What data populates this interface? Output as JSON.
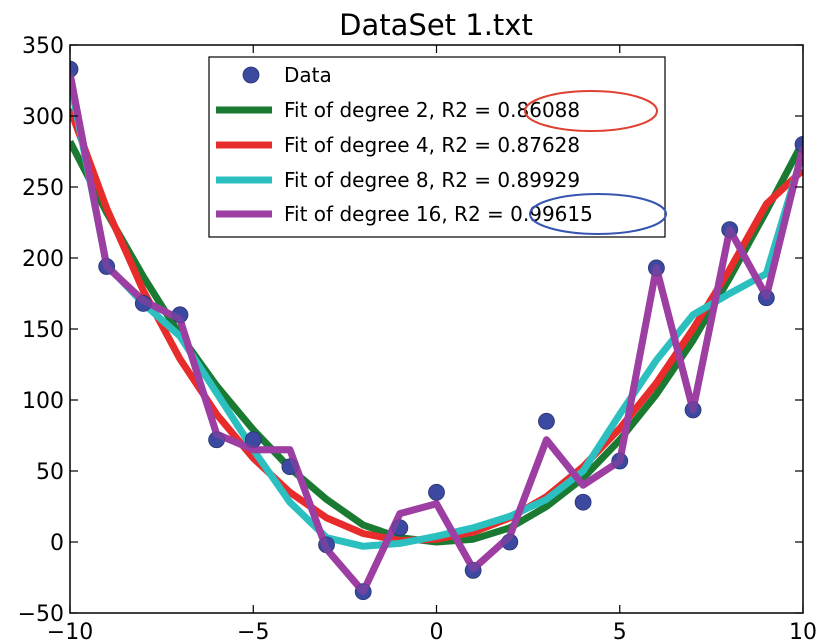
{
  "chart_data": {
    "type": "line",
    "title": "DataSet 1.txt",
    "xlabel": "",
    "ylabel": "",
    "xlim": [
      -10,
      10
    ],
    "ylim": [
      -50,
      350
    ],
    "xticks": [
      -10,
      -5,
      0,
      5,
      10
    ],
    "yticks": [
      -50,
      0,
      50,
      100,
      150,
      200,
      250,
      300,
      350
    ],
    "xtick_labels": [
      "−10",
      "−5",
      "0",
      "5",
      "10"
    ],
    "ytick_labels": [
      "−50",
      "0",
      "50",
      "100",
      "150",
      "200",
      "250",
      "300",
      "350"
    ],
    "grid": false,
    "legend_position": "top-center",
    "series": [
      {
        "name": "Data",
        "kind": "scatter",
        "color": "#3b4aa0",
        "x": [
          -10,
          -9,
          -8,
          -7,
          -6,
          -5,
          -4,
          -3,
          -2,
          -1,
          0,
          1,
          2,
          3,
          4,
          5,
          6,
          7,
          8,
          9,
          10
        ],
        "y": [
          333,
          194,
          168,
          160,
          72,
          72,
          53,
          -2,
          -35,
          10,
          35,
          -20,
          0,
          85,
          28,
          57,
          193,
          93,
          220,
          172,
          280
        ]
      },
      {
        "name": "Fit of degree 2, R2 = 0.86088",
        "kind": "line",
        "color": "#1a7a32",
        "x": [
          -10,
          -9,
          -8,
          -7,
          -6,
          -5,
          -4,
          -3,
          -2,
          -1,
          0,
          1,
          2,
          3,
          4,
          5,
          6,
          7,
          8,
          9,
          10
        ],
        "y": [
          282,
          232,
          187,
          146,
          110,
          79,
          52,
          30,
          12,
          3,
          0,
          2,
          10,
          25,
          45,
          72,
          104,
          142,
          186,
          233,
          282
        ]
      },
      {
        "name": "Fit of degree 4, R2 = 0.87628",
        "kind": "line",
        "color": "#e82c2c",
        "x": [
          -10,
          -9,
          -8,
          -7,
          -6,
          -5,
          -4,
          -3,
          -2,
          -1,
          0,
          1,
          2,
          3,
          4,
          5,
          6,
          7,
          8,
          9,
          10
        ],
        "y": [
          305,
          235,
          177,
          129,
          90,
          59,
          35,
          17,
          6,
          1,
          2,
          7,
          17,
          32,
          53,
          80,
          112,
          150,
          192,
          238,
          262
        ]
      },
      {
        "name": "Fit of degree 8, R2 = 0.89929",
        "kind": "line",
        "color": "#2bbfc0",
        "x": [
          -10,
          -9,
          -8,
          -7,
          -6,
          -5,
          -4,
          -3,
          -2,
          -1,
          0,
          1,
          2,
          3,
          4,
          5,
          6,
          7,
          8,
          9,
          10
        ],
        "y": [
          325,
          195,
          168,
          145,
          105,
          65,
          28,
          3,
          -3,
          -1,
          4,
          10,
          18,
          30,
          50,
          90,
          128,
          160,
          175,
          189,
          275
        ]
      },
      {
        "name": "Fit of degree 16, R2 = 0.99615",
        "kind": "line",
        "color": "#9d3ea3",
        "x": [
          -10,
          -9,
          -8,
          -7,
          -6,
          -5,
          -4,
          -3,
          -2,
          -1,
          0,
          1,
          2,
          3,
          4,
          5,
          6,
          7,
          8,
          9,
          10
        ],
        "y": [
          330,
          194,
          170,
          157,
          76,
          65,
          65,
          -5,
          -35,
          20,
          27,
          -19,
          4,
          72,
          40,
          57,
          193,
          93,
          220,
          173,
          278
        ]
      }
    ],
    "annotations": [
      {
        "type": "ellipse",
        "color": "#e04030",
        "target": "0.86088"
      },
      {
        "type": "ellipse",
        "color": "#3555b0",
        "target": "0.99615"
      }
    ]
  }
}
